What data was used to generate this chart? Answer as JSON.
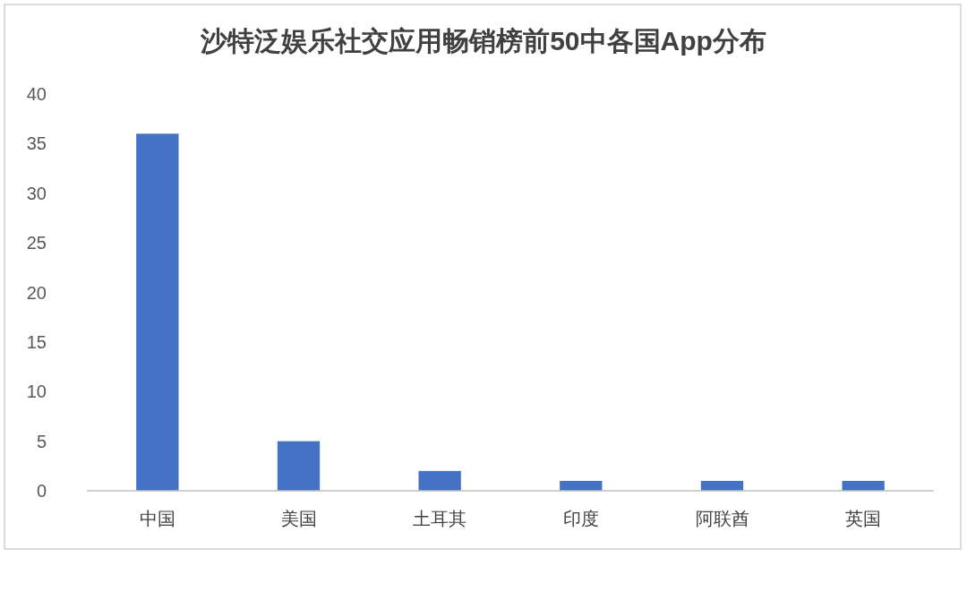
{
  "chart_data": {
    "type": "bar",
    "title": "沙特泛娱乐社交应用畅销榜前50中各国App分布",
    "categories": [
      "中国",
      "美国",
      "土耳其",
      "印度",
      "阿联酋",
      "英国"
    ],
    "values": [
      36,
      5,
      2,
      1,
      1,
      1
    ],
    "color": "#4472c4",
    "ylim": [
      0,
      40
    ],
    "yticks": [
      0,
      5,
      10,
      15,
      20,
      25,
      30,
      35,
      40
    ],
    "grid": false
  }
}
